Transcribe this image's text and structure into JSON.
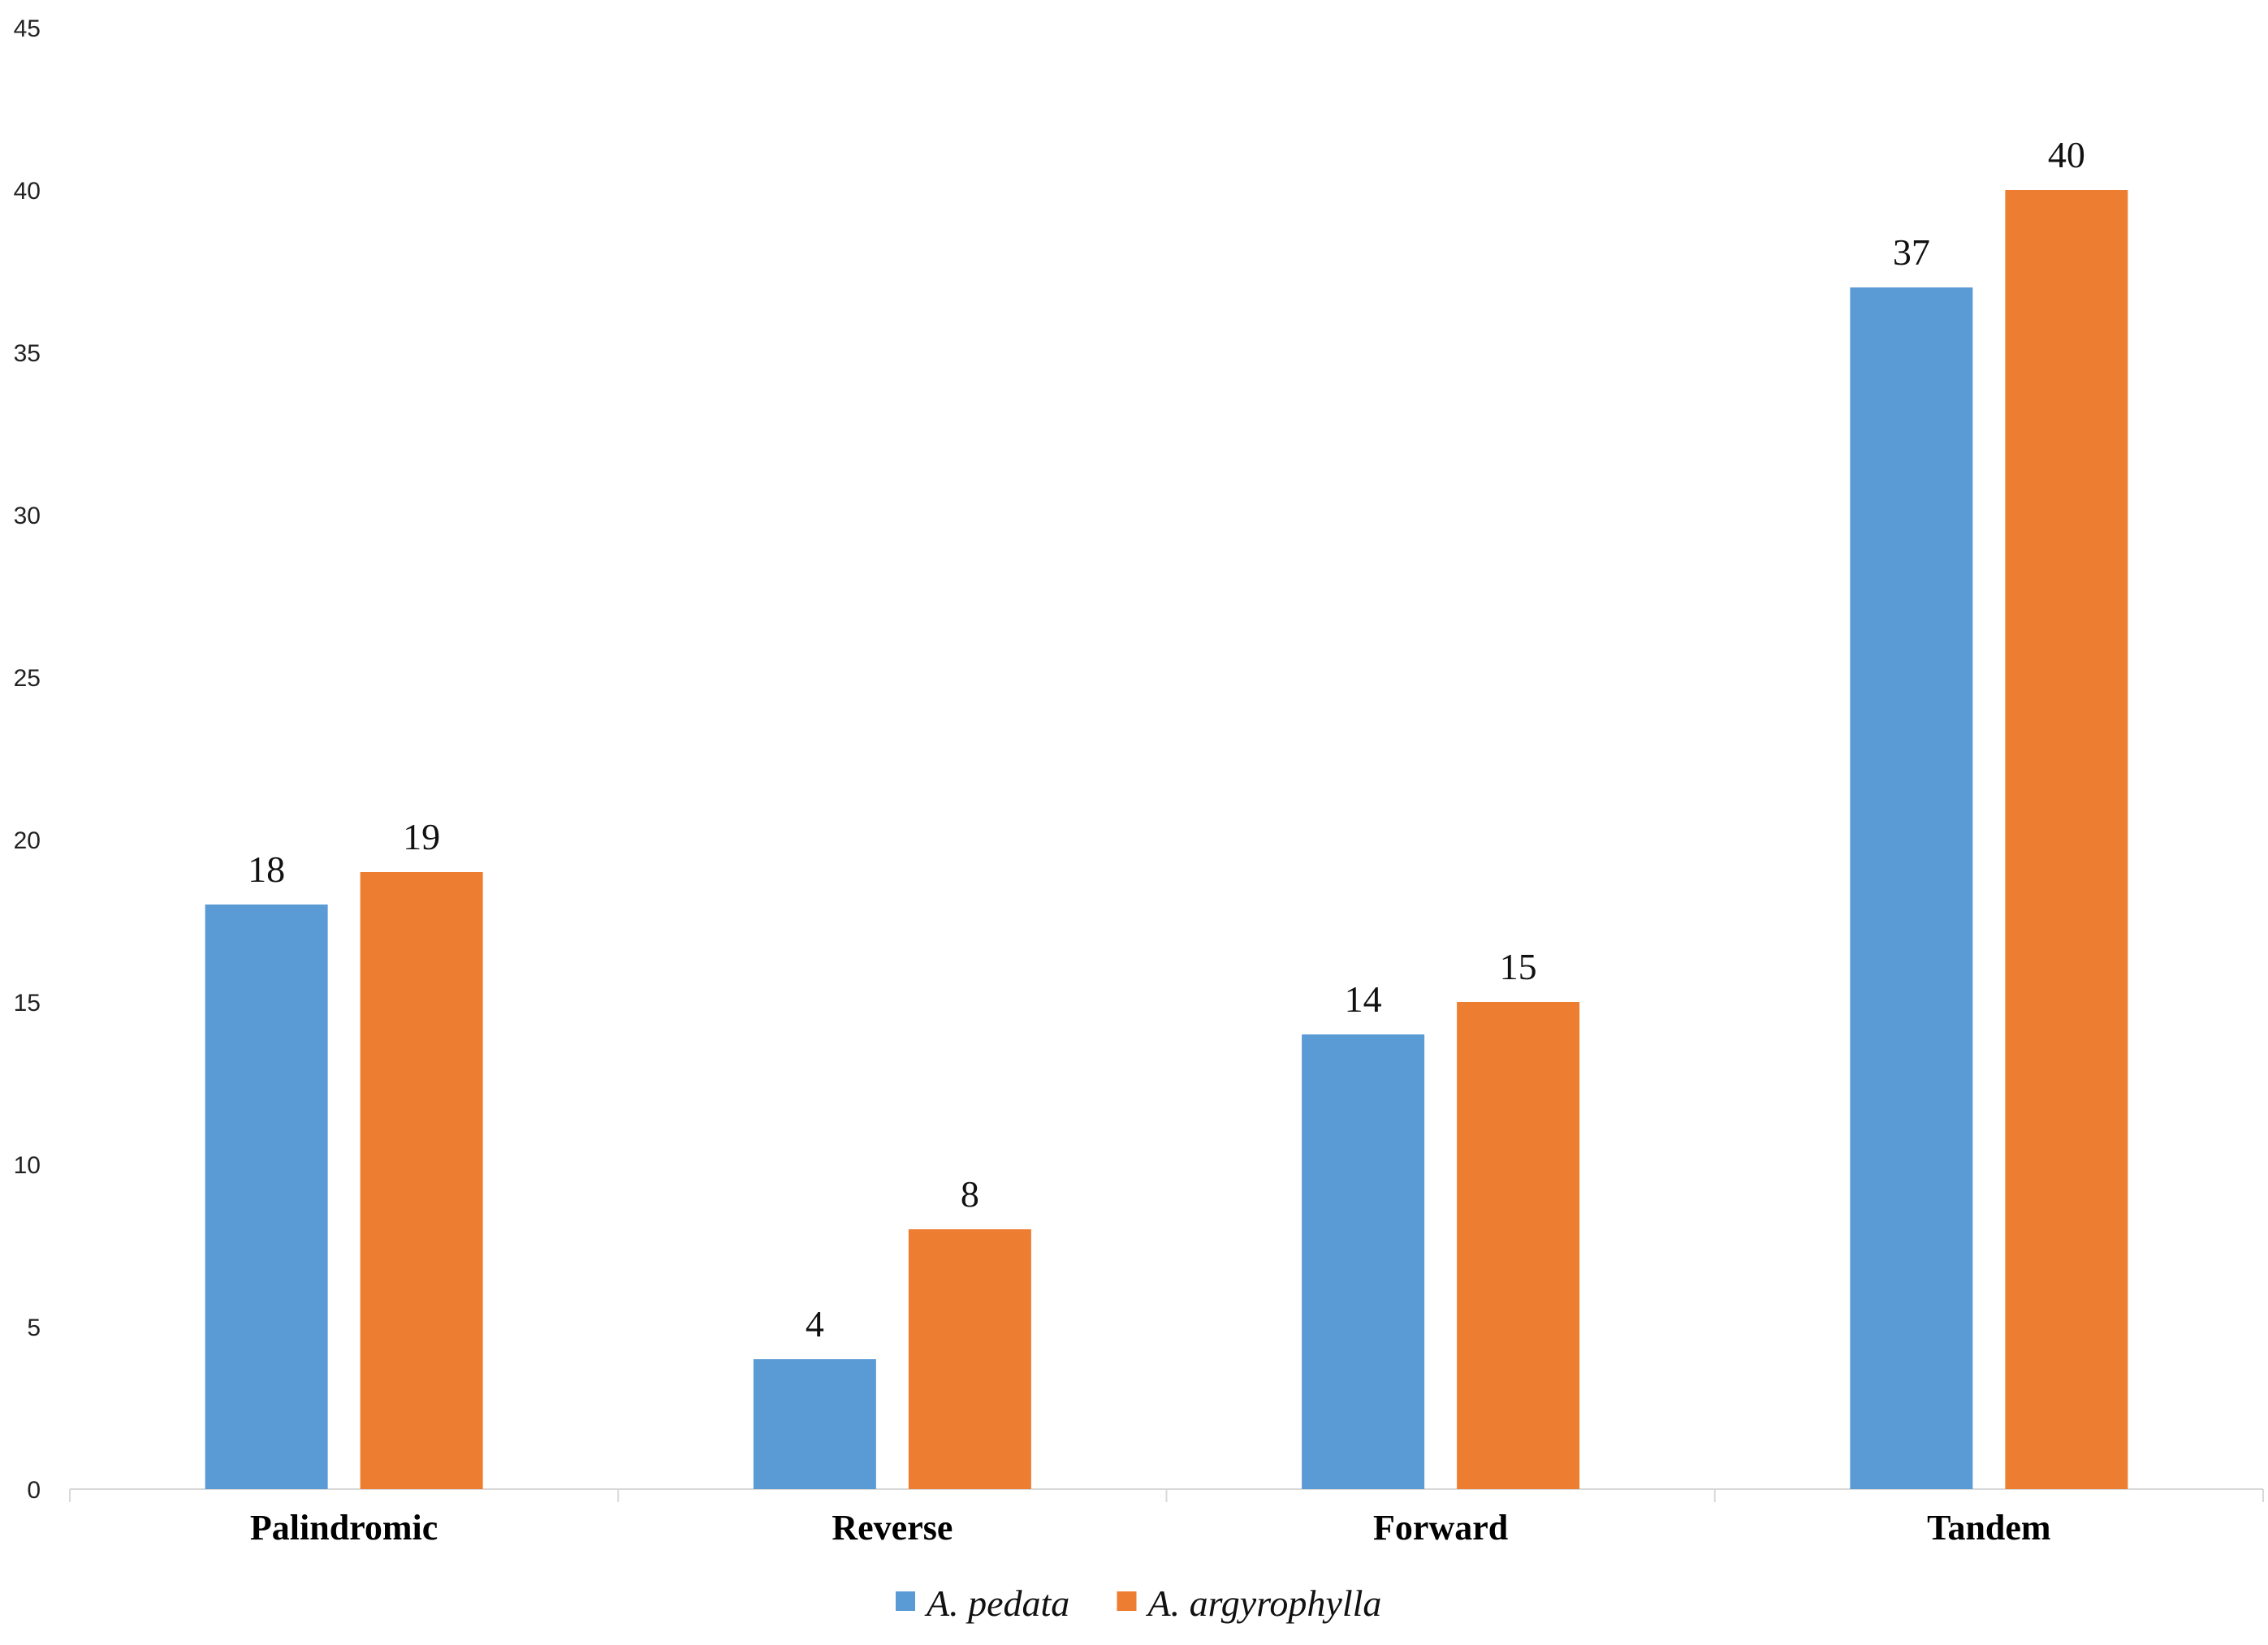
{
  "chart_data": {
    "type": "bar",
    "categories": [
      "Palindromic",
      "Reverse",
      "Forward",
      "Tandem"
    ],
    "series": [
      {
        "name": "A. pedata",
        "values": [
          18,
          4,
          14,
          37
        ],
        "color": "#5b9bd5"
      },
      {
        "name": "A. argyrophylla",
        "values": [
          19,
          8,
          15,
          40
        ],
        "color": "#ed7d31"
      }
    ],
    "title": "",
    "xlabel": "",
    "ylabel": "",
    "ylim": [
      0,
      45
    ],
    "yticks": [
      0,
      5,
      10,
      15,
      20,
      25,
      30,
      35,
      40,
      45
    ],
    "grid": false,
    "legend_position": "bottom",
    "data_labels": true
  }
}
